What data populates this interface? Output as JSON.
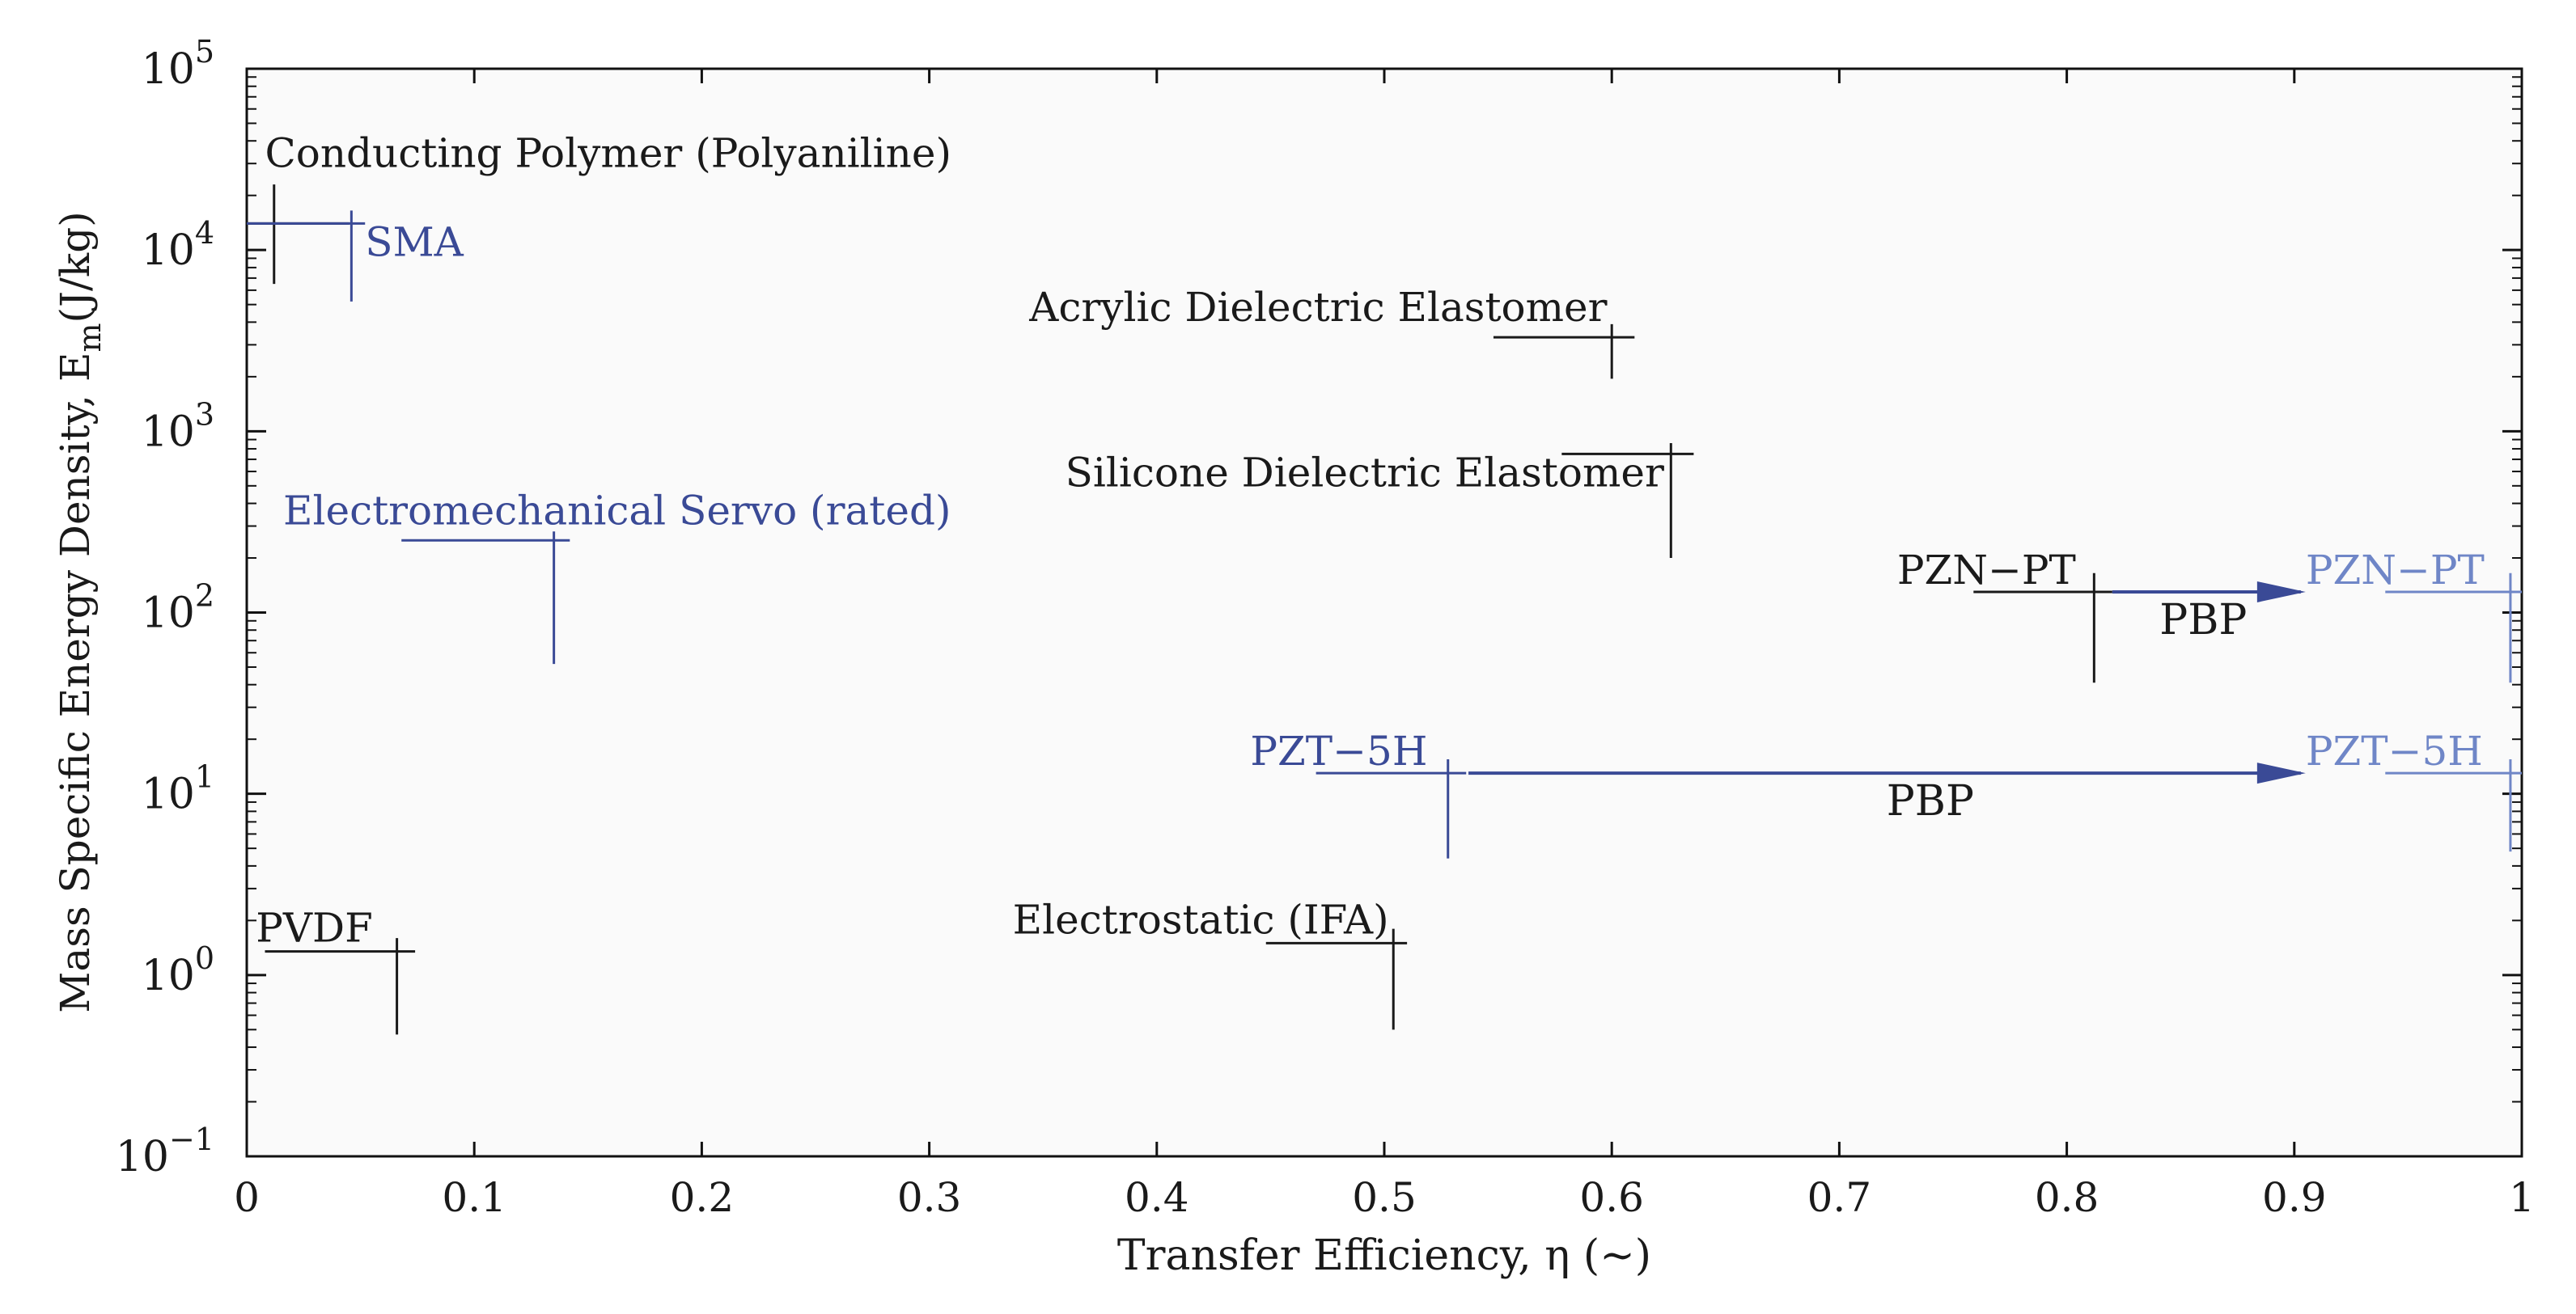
{
  "chart_data": {
    "type": "scatter",
    "title": "",
    "xlabel": "Transfer Efficiency, η  (~)",
    "ylabel_main": "Mass Specific Energy Density, E",
    "ylabel_sub": "m",
    "ylabel_unit": "(J/kg)",
    "xlim": [
      0,
      1
    ],
    "ylim_log10": [
      -1,
      5
    ],
    "x_ticks": [
      {
        "value": 0,
        "label": "0"
      },
      {
        "value": 0.1,
        "label": "0.1"
      },
      {
        "value": 0.2,
        "label": "0.2"
      },
      {
        "value": 0.3,
        "label": "0.3"
      },
      {
        "value": 0.4,
        "label": "0.4"
      },
      {
        "value": 0.5,
        "label": "0.5"
      },
      {
        "value": 0.6,
        "label": "0.6"
      },
      {
        "value": 0.7,
        "label": "0.7"
      },
      {
        "value": 0.8,
        "label": "0.8"
      },
      {
        "value": 0.9,
        "label": "0.9"
      },
      {
        "value": 1,
        "label": "1"
      }
    ],
    "y_ticks": [
      {
        "exp": -1,
        "base": "10",
        "sup": "−1"
      },
      {
        "exp": 0,
        "base": "10",
        "sup": "0"
      },
      {
        "exp": 1,
        "base": "10",
        "sup": "1"
      },
      {
        "exp": 2,
        "base": "10",
        "sup": "2"
      },
      {
        "exp": 3,
        "base": "10",
        "sup": "3"
      },
      {
        "exp": 4,
        "base": "10",
        "sup": "4"
      },
      {
        "exp": 5,
        "base": "10",
        "sup": "5"
      }
    ],
    "grid": false,
    "colors": {
      "black": "#1a1a1a",
      "blue": "#3a4a96",
      "lightblue": "#6f86c7",
      "background": "#fafafa"
    },
    "points": [
      {
        "label": "Conducting Polymer (Polyaniline)",
        "color": "black",
        "x": 0.012,
        "y": 14000,
        "x_range": [
          0.0,
          0.045
        ],
        "y_range": [
          6500,
          23000
        ]
      },
      {
        "label": "SMA",
        "color": "blue",
        "x": 0.046,
        "y": 14000,
        "x_range": [
          0.0,
          0.052
        ],
        "y_range": [
          5200,
          16500
        ]
      },
      {
        "label": "Acrylic Dielectric Elastomer",
        "color": "black",
        "x": 0.6,
        "y": 3300,
        "x_range": [
          0.548,
          0.61
        ],
        "y_range": [
          1950,
          3900
        ]
      },
      {
        "label": "Silicone Dielectric Elastomer",
        "color": "black",
        "x": 0.626,
        "y": 750,
        "x_range": [
          0.578,
          0.636
        ],
        "y_range": [
          200,
          860
        ]
      },
      {
        "label": "Electromechanical Servo (rated)",
        "color": "blue",
        "x": 0.135,
        "y": 250,
        "x_range": [
          0.068,
          0.142
        ],
        "y_range": [
          52,
          280
        ]
      },
      {
        "label": "PZN−PT",
        "color": "black",
        "x": 0.812,
        "y": 130,
        "x_range": [
          0.759,
          0.82
        ],
        "y_range": [
          41,
          165
        ]
      },
      {
        "label": "PZN−PT",
        "color": "lightblue",
        "x": 0.995,
        "y": 130,
        "x_range": [
          0.94,
          1.0
        ],
        "y_range": [
          41,
          165
        ]
      },
      {
        "label": "PZT−5H",
        "color": "blue",
        "x": 0.528,
        "y": 13,
        "x_range": [
          0.47,
          0.536
        ],
        "y_range": [
          4.4,
          15.5
        ]
      },
      {
        "label": "PZT−5H",
        "color": "lightblue",
        "x": 0.995,
        "y": 13,
        "x_range": [
          0.94,
          1.0
        ],
        "y_range": [
          4.8,
          15.5
        ]
      },
      {
        "label": "PVDF",
        "color": "black",
        "x": 0.066,
        "y": 1.35,
        "x_range": [
          0.008,
          0.074
        ],
        "y_range": [
          0.47,
          1.6
        ]
      },
      {
        "label": "Electrostatic (IFA)",
        "color": "black",
        "x": 0.504,
        "y": 1.5,
        "x_range": [
          0.448,
          0.51
        ],
        "y_range": [
          0.5,
          1.8
        ]
      }
    ],
    "arrows": [
      {
        "label": "PBP",
        "from_x": 0.82,
        "to_x": 0.905,
        "y": 130
      },
      {
        "label": "PBP",
        "from_x": 0.537,
        "to_x": 0.905,
        "y": 13
      }
    ]
  }
}
